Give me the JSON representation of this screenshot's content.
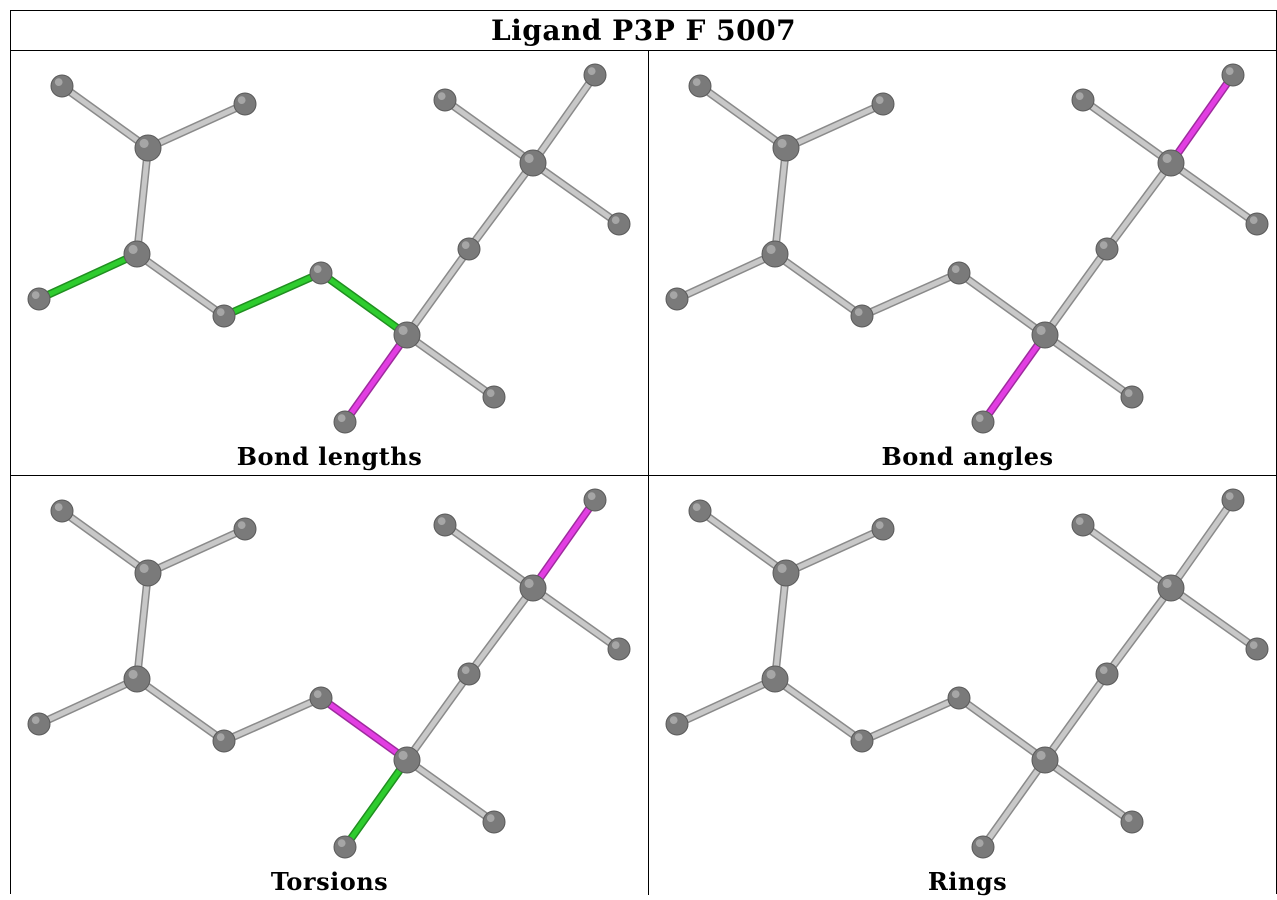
{
  "title": "Ligand P3P F 5007",
  "panels": [
    {
      "caption": "Bond lengths",
      "highlights": {
        "0-2": "#2ecc2e",
        "5-6": "#2ecc2e",
        "6-7": "#2ecc2e",
        "7-8": "#e23ee2",
        "12-13": "#2ecc2e",
        "12-14": "#2ecc2e",
        "12-15": "#2ecc2e"
      }
    },
    {
      "caption": "Bond angles",
      "highlights": {
        "7-8": "#e23ee2",
        "8-9": "#e23ee2",
        "8-10": "#e23ee2",
        "11-12": "#e23ee2",
        "12-13": "#e23ee2",
        "12-14": "#e23ee2",
        "12-15": "#2ecc2e"
      }
    },
    {
      "caption": "Torsions",
      "highlights": {
        "2-6": "#2ecc2e",
        "6-7": "#e23ee2",
        "7-8": "#2ecc2e",
        "11-12": "#e23ee2"
      }
    },
    {
      "caption": "Rings",
      "highlights": {}
    }
  ],
  "colors": {
    "bond_default": "#c8c8c8",
    "bond_edge": "#8a8a8a",
    "atom": "#7a7a7a",
    "green": "#2ecc2e",
    "magenta": "#e23ee2"
  }
}
